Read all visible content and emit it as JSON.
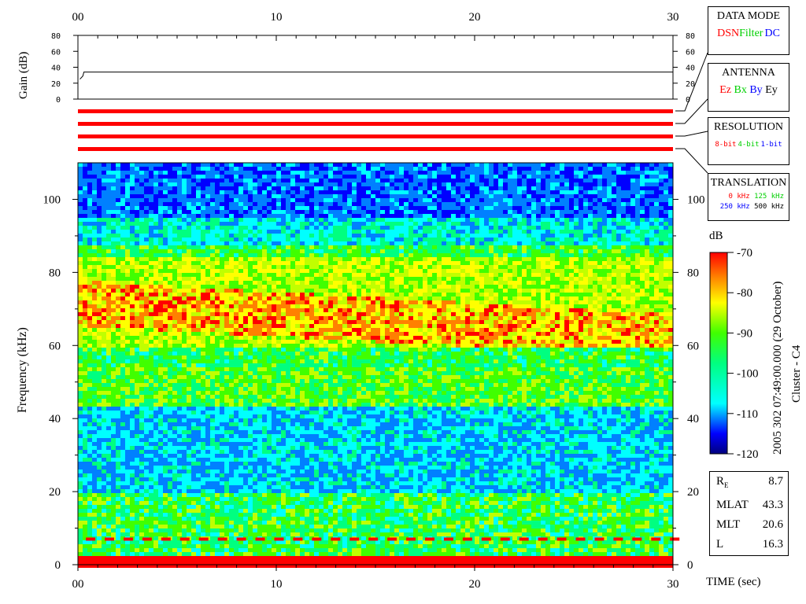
{
  "chart_data": {
    "type": "heatmap",
    "xlabel": "TIME (sec)",
    "ylabel": "Frequency (kHz)",
    "xlim": [
      0,
      30
    ],
    "ylim": [
      0,
      110
    ],
    "x_ticks": [
      "00",
      "10",
      "20",
      "30"
    ],
    "y_ticks": [
      "0",
      "20",
      "40",
      "60",
      "80",
      "100"
    ],
    "colorbar": {
      "label": "dB",
      "range": [
        -120,
        -70
      ],
      "ticks": [
        "-70",
        "-80",
        "-90",
        "-100",
        "-110",
        "-120"
      ]
    },
    "gain_panel": {
      "ylabel": "Gain (dB)",
      "y_ticks": [
        "0",
        "20",
        "40",
        "60",
        "80"
      ],
      "ylim": [
        0,
        80
      ],
      "level_db": 34,
      "initial_level_db": 25
    },
    "features": {
      "main_band_khz": [
        60,
        85
      ],
      "main_band_peak_db": -72,
      "secondary_band_khz": [
        44,
        55
      ],
      "lower_emission_khz": [
        4,
        18
      ],
      "dashed_line_khz": 7,
      "base_line_khz": 1
    },
    "side_title": "2005 302 07:49:00.000 (29 October)",
    "spacecraft": "Cluster - C4"
  },
  "panels": {
    "data_mode": {
      "title": "DATA MODE",
      "items": [
        "DSN",
        "Filter",
        "DC"
      ]
    },
    "antenna": {
      "title": "ANTENNA",
      "items": [
        "Ez",
        "Bx",
        "By",
        "Ey"
      ]
    },
    "resolution": {
      "title": "RESOLUTION",
      "items": [
        "8-bit",
        "4-bit",
        "1-bit"
      ]
    },
    "translation": {
      "title": "TRANSLATION",
      "items": [
        "0 kHz",
        "125 kHz",
        "250 kHz",
        "500 kHz"
      ]
    }
  },
  "params": {
    "re": {
      "label": "R",
      "sub": "E",
      "value": "8.7"
    },
    "mlat": {
      "label": "MLAT",
      "value": "43.3"
    },
    "mlt": {
      "label": "MLT",
      "value": "20.6"
    },
    "l": {
      "label": "L",
      "value": "16.3"
    }
  },
  "colors": {
    "red": "#ff0000",
    "green": "#00d000",
    "blue": "#0000ff",
    "black": "#000000"
  }
}
